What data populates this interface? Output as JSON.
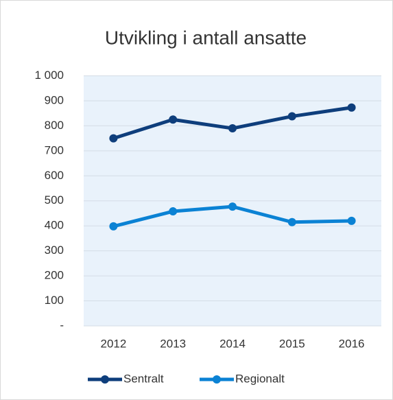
{
  "chart_data": {
    "type": "line",
    "title": "Utvikling i antall ansatte",
    "categories": [
      "2012",
      "2013",
      "2014",
      "2015",
      "2016"
    ],
    "series": [
      {
        "name": "Sentralt",
        "color": "#0e3e7c",
        "values": [
          750,
          825,
          790,
          838,
          873
        ]
      },
      {
        "name": "Regionalt",
        "color": "#0b82d4",
        "values": [
          398,
          458,
          477,
          415,
          420
        ]
      }
    ],
    "ylim": [
      0,
      1000
    ],
    "yticks": [
      {
        "value": 0,
        "label": "-"
      },
      100,
      200,
      300,
      400,
      500,
      600,
      700,
      800,
      900,
      {
        "value": 1000,
        "label": "1 000"
      }
    ],
    "grid": true,
    "legend": "bottom"
  }
}
